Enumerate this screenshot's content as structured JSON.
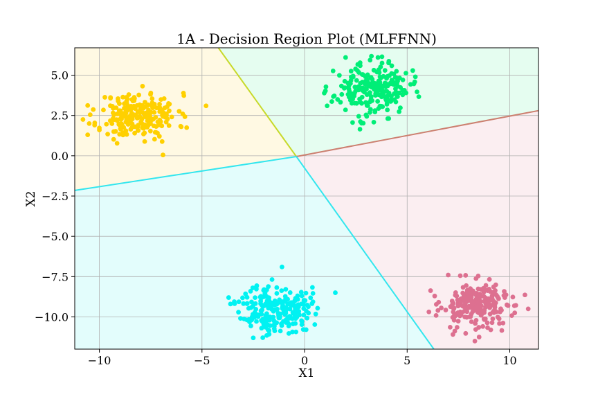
{
  "chart_data": {
    "type": "scatter",
    "title": "1A - Decision Region Plot (MLFFNN)",
    "xlabel": "X1",
    "ylabel": "X2",
    "xlim": [
      -11.2,
      11.4
    ],
    "ylim": [
      -12.0,
      6.7
    ],
    "xticks": [
      -10,
      -5,
      0,
      5,
      10
    ],
    "yticks": [
      5.0,
      2.5,
      0.0,
      -2.5,
      -5.0,
      -7.5,
      -10.0
    ],
    "xtick_labels": [
      "−10",
      "−5",
      "0",
      "5",
      "10"
    ],
    "ytick_labels": [
      "5.0",
      "2.5",
      "0.0",
      "−2.5",
      "−5.0",
      "−7.5",
      "−10.0"
    ],
    "grid": true,
    "intersection": [
      -0.4,
      -0.05
    ],
    "regions": [
      {
        "color": "#fff9e3",
        "polygon": [
          [
            -11.2,
            6.7
          ],
          [
            -4.2,
            6.7
          ],
          [
            -0.4,
            -0.05
          ],
          [
            -11.2,
            -2.15
          ]
        ]
      },
      {
        "color": "#e5fdf0",
        "polygon": [
          [
            -4.2,
            6.7
          ],
          [
            11.4,
            6.7
          ],
          [
            11.4,
            2.8
          ],
          [
            -0.4,
            -0.05
          ]
        ]
      },
      {
        "color": "#fbeef1",
        "polygon": [
          [
            -0.4,
            -0.05
          ],
          [
            11.4,
            2.8
          ],
          [
            11.4,
            -12.0
          ],
          [
            6.3,
            -12.0
          ]
        ]
      },
      {
        "color": "#e3fdfc",
        "polygon": [
          [
            -11.2,
            -2.15
          ],
          [
            -0.4,
            -0.05
          ],
          [
            6.3,
            -12.0
          ],
          [
            -11.2,
            -12.0
          ]
        ]
      }
    ],
    "boundaries": [
      {
        "color": "#c7d92a",
        "points": [
          [
            -0.4,
            -0.05
          ],
          [
            -4.2,
            6.7
          ]
        ]
      },
      {
        "color": "#cc8070",
        "points": [
          [
            -0.4,
            -0.05
          ],
          [
            11.4,
            2.8
          ]
        ]
      },
      {
        "color": "#33e6ee",
        "points": [
          [
            -11.2,
            -2.15
          ],
          [
            -0.4,
            -0.05
          ]
        ]
      },
      {
        "color": "#33e6ee",
        "points": [
          [
            -0.4,
            -0.05
          ],
          [
            6.3,
            -12.0
          ]
        ]
      }
    ],
    "clusters": [
      {
        "color": "#ffd000",
        "center": [
          -8.1,
          2.5
        ],
        "spread": [
          0.95,
          0.7
        ],
        "count": 230,
        "seed": 11,
        "outliers": [
          [
            -10.8,
            2.25
          ],
          [
            -4.8,
            3.1
          ],
          [
            -6.9,
            0.05
          ],
          [
            -10.0,
            1.6
          ]
        ]
      },
      {
        "color": "#00ee77",
        "center": [
          3.3,
          4.1
        ],
        "spread": [
          0.9,
          0.8
        ],
        "count": 230,
        "seed": 23,
        "outliers": [
          [
            1.1,
            3.1
          ],
          [
            5.4,
            4.9
          ],
          [
            2.7,
            1.65
          ],
          [
            2.0,
            6.1
          ]
        ]
      },
      {
        "color": "#00f2f2",
        "center": [
          -1.4,
          -9.5
        ],
        "spread": [
          0.85,
          0.75
        ],
        "count": 230,
        "seed": 37,
        "outliers": [
          [
            1.5,
            -8.5
          ],
          [
            -3.7,
            -8.8
          ],
          [
            -1.1,
            -6.9
          ],
          [
            -2.5,
            -11.3
          ]
        ]
      },
      {
        "color": "#dd7090",
        "center": [
          8.4,
          -9.3
        ],
        "spread": [
          0.9,
          0.75
        ],
        "count": 230,
        "seed": 53,
        "outliers": [
          [
            10.9,
            -9.5
          ],
          [
            6.5,
            -9.6
          ],
          [
            8.3,
            -11.5
          ],
          [
            7.0,
            -7.4
          ]
        ]
      }
    ]
  }
}
